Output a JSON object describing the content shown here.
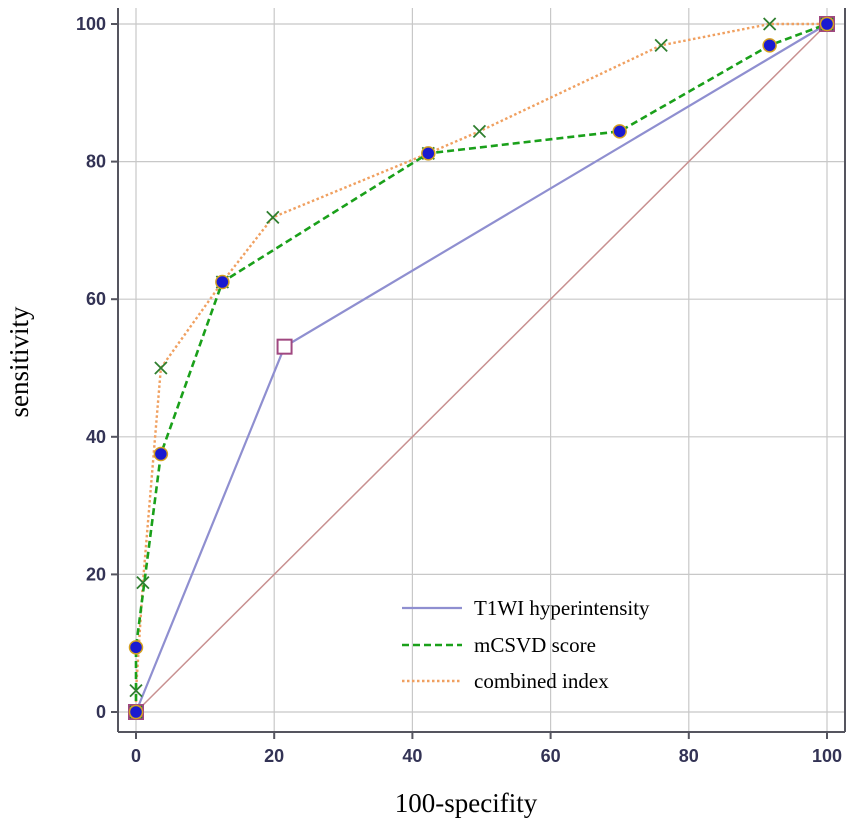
{
  "chart_data": {
    "type": "line",
    "title": "",
    "xlabel": "100-specifity",
    "ylabel": "sensitivity",
    "xlim": [
      0,
      100
    ],
    "ylim": [
      0,
      100
    ],
    "x_ticks": [
      0,
      20,
      40,
      60,
      80,
      100
    ],
    "y_ticks": [
      0,
      20,
      40,
      60,
      80,
      100
    ],
    "grid": true,
    "legend_position": "bottom-right",
    "reference_line": {
      "x": [
        0,
        100
      ],
      "y": [
        0,
        100
      ],
      "color": "#c89090"
    },
    "series": [
      {
        "name": "T1WI hyperintensity",
        "style": "solid",
        "color": "#8f8fd0",
        "marker": "open-square",
        "marker_color": "#a04880",
        "x": [
          0,
          21.5,
          100
        ],
        "y": [
          0,
          53.1,
          100
        ]
      },
      {
        "name": "mCSVD score",
        "style": "dashed",
        "color": "#1aa01a",
        "marker": "filled-circle",
        "marker_color": "#1a1ad0",
        "x": [
          0,
          0,
          3.6,
          12.5,
          42.3,
          70,
          91.7,
          100
        ],
        "y": [
          0,
          9.4,
          37.5,
          62.5,
          81.2,
          84.4,
          96.9,
          100
        ]
      },
      {
        "name": "combined index",
        "style": "dotted",
        "color": "#f0a060",
        "marker": "x-cross",
        "marker_color": "#2f7f2f",
        "x": [
          0,
          0,
          1,
          3.6,
          12.5,
          19.8,
          42.3,
          49.7,
          76,
          91.7,
          100
        ],
        "y": [
          0,
          3.1,
          18.8,
          50,
          62.5,
          71.9,
          81.2,
          84.4,
          96.9,
          100,
          100
        ]
      }
    ]
  }
}
